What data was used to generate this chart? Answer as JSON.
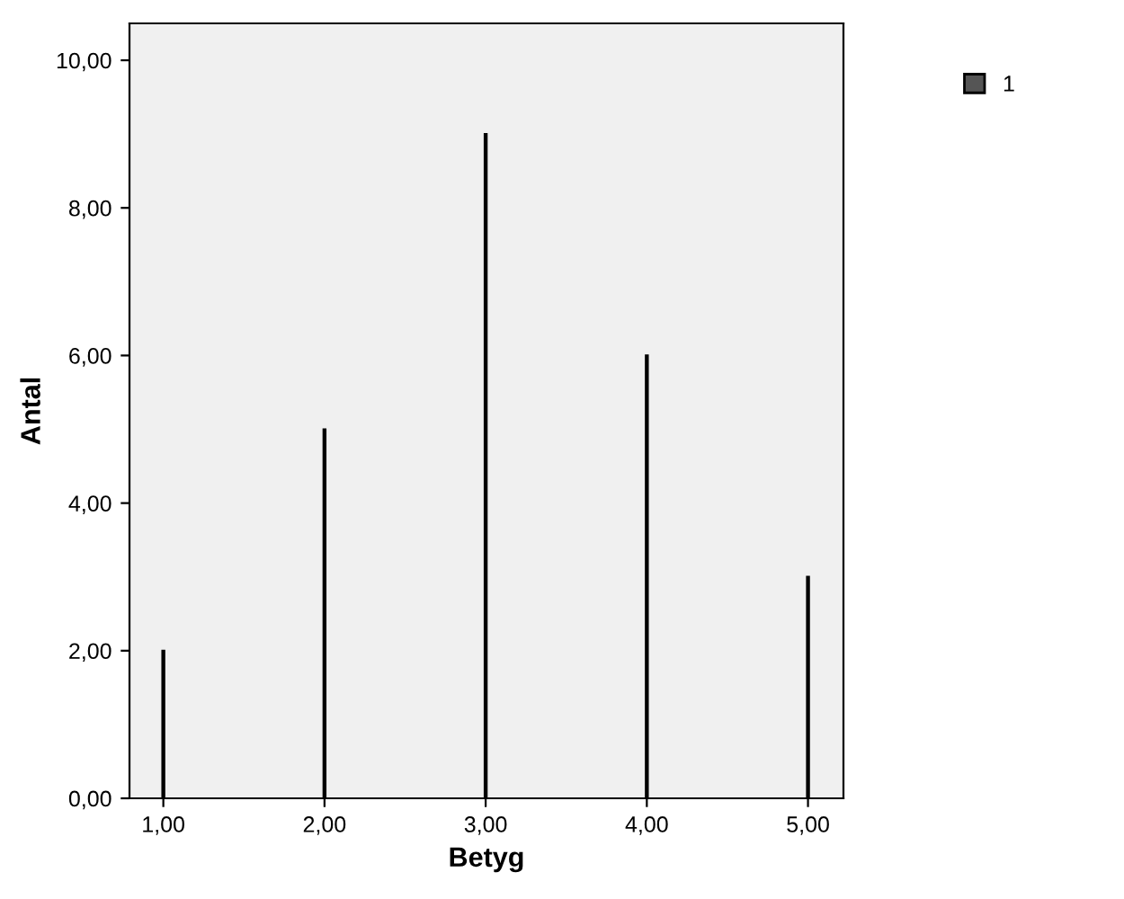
{
  "chart_data": {
    "type": "bar",
    "xlabel": "Betyg",
    "ylabel": "Antal",
    "x": [
      1,
      2,
      3,
      4,
      5
    ],
    "series": [
      {
        "name": "1",
        "color": "#555555",
        "values": [
          2,
          5,
          9,
          6,
          3
        ]
      }
    ],
    "xlim": [
      0.79,
      5.22
    ],
    "xticks": [
      {
        "value": 1,
        "label": "1,00"
      },
      {
        "value": 2,
        "label": "2,00"
      },
      {
        "value": 3,
        "label": "3,00"
      },
      {
        "value": 4,
        "label": "4,00"
      },
      {
        "value": 5,
        "label": "5,00"
      }
    ],
    "ylim": [
      0,
      10.5
    ],
    "yticks": [
      {
        "value": 0,
        "label": "0,00"
      },
      {
        "value": 2,
        "label": "2,00"
      },
      {
        "value": 4,
        "label": "4,00"
      },
      {
        "value": 6,
        "label": "6,00"
      },
      {
        "value": 8,
        "label": "8,00"
      },
      {
        "value": 10,
        "label": "10,00"
      }
    ],
    "grid": false,
    "legend": "top right"
  }
}
